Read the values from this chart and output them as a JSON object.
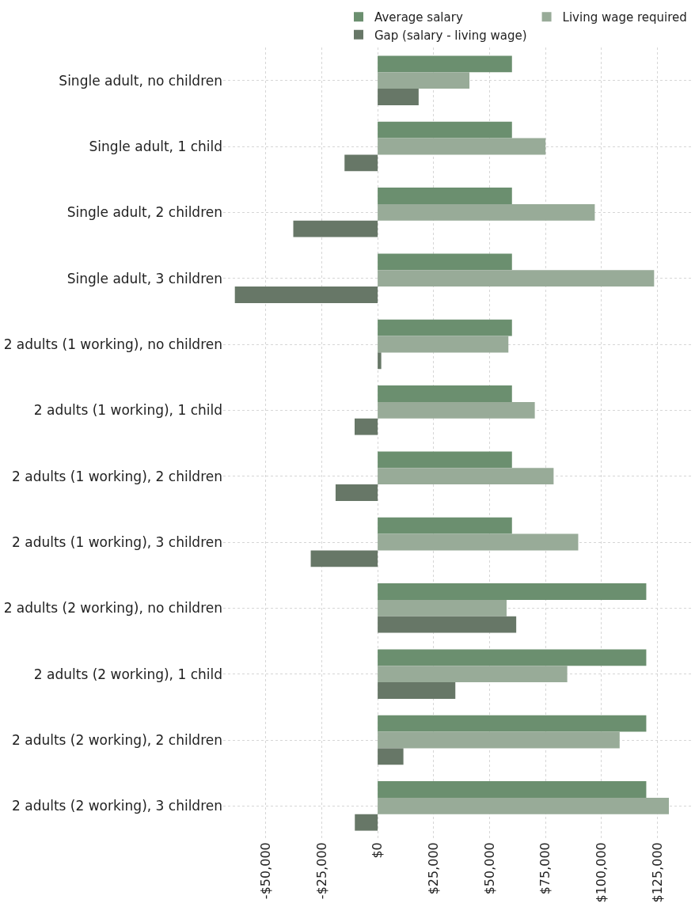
{
  "chart_data": {
    "type": "bar",
    "orientation": "horizontal",
    "categories": [
      "Single adult, no children",
      "Single adult, 1 child",
      "Single adult, 2 children",
      "Single adult, 3 children",
      "2 adults (1 working), no children",
      "2 adults (1 working), 1 child",
      "2 adults (1 working), 2 children",
      "2 adults (1 working), 3 children",
      "2 adults (2 working), no children",
      "2 adults (2 working), 1 child",
      "2 adults (2 working), 2 children",
      "2 adults (2 working), 3 children"
    ],
    "series": [
      {
        "name": "Average salary",
        "color": "#6b8f6f",
        "values": [
          60000,
          60000,
          60000,
          60000,
          60000,
          60000,
          60000,
          60000,
          120000,
          120000,
          120000,
          120000
        ]
      },
      {
        "name": "Living wage required",
        "color": "#98ab98",
        "values": [
          41000,
          75000,
          97000,
          123500,
          58400,
          70200,
          78600,
          89600,
          57600,
          84700,
          108100,
          130100
        ]
      },
      {
        "name": "Gap (salary - living wage)",
        "color": "#677767",
        "values": [
          18300,
          -14800,
          -37700,
          -63800,
          1600,
          -10300,
          -18800,
          -29900,
          61900,
          34700,
          11500,
          -10200
        ]
      }
    ],
    "xlim": [
      -69000,
      140000
    ],
    "xticks": [
      {
        "value": -50000,
        "label": "-$50,000"
      },
      {
        "value": -25000,
        "label": "-$25,000"
      },
      {
        "value": 0,
        "label": "$0"
      },
      {
        "value": 25000,
        "label": "$25,000"
      },
      {
        "value": 50000,
        "label": "$50,000"
      },
      {
        "value": 75000,
        "label": "$75,000"
      },
      {
        "value": 100000,
        "label": "$100,000"
      },
      {
        "value": 125000,
        "label": "$125,000"
      }
    ],
    "grid": true,
    "legend": "top"
  }
}
